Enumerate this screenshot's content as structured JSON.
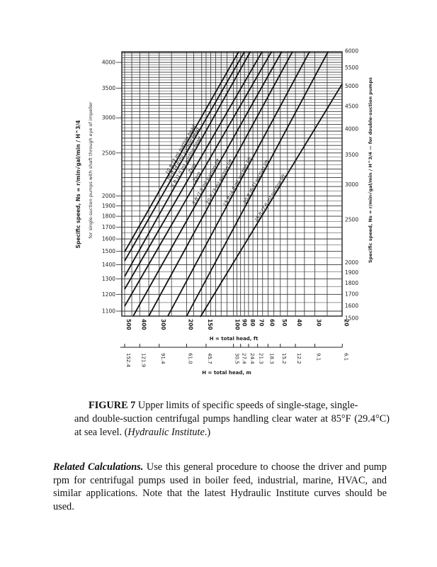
{
  "figure": {
    "number": "FIGURE 7",
    "caption_line1": "Upper limits of specific speeds of single-stage, single-",
    "caption_rest": "and double-suction centrifugal pumps handling clear water at 85°F (29.4°C) at sea level. (",
    "caption_source": "Hydraulic Institute",
    "caption_end": ".)"
  },
  "related": {
    "heading": "Related Calculations.",
    "text": "Use this general procedure to choose the driver and pump rpm for centrifugal pumps used in boiler feed, industrial, marine, HVAC, and similar applications. Note that the latest Hydraulic Institute curves should be used."
  },
  "chart_data": {
    "type": "line",
    "x_scale": "log",
    "y_scale": "log",
    "x_reversed": true,
    "grid": true,
    "xlabel": "H = total head, ft",
    "xlabel_secondary": "H = total head, m",
    "ylabel_left_1": "Specific speed, Ns = r/min√gal/min / H^3/4",
    "ylabel_left_2": "for single-suction pumps with shaft through eye of impeller",
    "ylabel_right": "Specific speed, Ns = r/min√gal/min / H^3/4 — for double-suction pumps",
    "xlim": [
      500,
      20
    ],
    "ylim_left": [
      1070,
      4230
    ],
    "ylim_right": [
      1500,
      6000
    ],
    "x_ticks": [
      500,
      400,
      300,
      200,
      150,
      100,
      90,
      80,
      70,
      60,
      50,
      40,
      30,
      20
    ],
    "x_ticks_m": [
      "152.4",
      "121.9",
      "91.4",
      "61.0",
      "45.7",
      "30.5",
      "27.4",
      "24.4",
      "21.3",
      "18.3",
      "15.2",
      "12.2",
      "9.1",
      "6.1"
    ],
    "y_ticks_left": [
      1100,
      1200,
      1300,
      1400,
      1500,
      1600,
      1700,
      1800,
      1900,
      2000,
      2500,
      3000,
      3500,
      4000
    ],
    "y_ticks_right": [
      1500,
      1600,
      1700,
      1800,
      1900,
      2000,
      2500,
      3000,
      3500,
      4000,
      4500,
      5000,
      5500,
      6000
    ],
    "series": [
      {
        "name": "10 ft (3 m) suction head",
        "points": [
          [
            500,
            1497
          ],
          [
            92.6,
            4227
          ]
        ]
      },
      {
        "name": "15 ft (4.6 m) suction head",
        "points": [
          [
            500,
            1428
          ],
          [
            85,
            4227
          ]
        ]
      },
      {
        "name": "5 ft (1.5 m) suction head",
        "points": [
          [
            500,
            1317
          ],
          [
            78,
            4227
          ]
        ]
      },
      {
        "name": "Zero",
        "points": [
          [
            500,
            1233
          ],
          [
            65.5,
            4227
          ]
        ]
      },
      {
        "name": "Zero",
        "points": [
          [
            500,
            1129
          ],
          [
            57,
            4227
          ]
        ]
      },
      {
        "name": "5 ft (1.5 m) suction lift",
        "points": [
          [
            441,
            1072
          ],
          [
            49,
            4227
          ]
        ]
      },
      {
        "name": "10 ft (3 m) suction lift",
        "points": [
          [
            350,
            1072
          ],
          [
            41.8,
            4227
          ]
        ]
      },
      {
        "name": "15 ft (4.6 m) suction lift",
        "points": [
          [
            264,
            1072
          ],
          [
            32.5,
            4227
          ]
        ]
      },
      {
        "name": "20 ft (6.1) suction lift",
        "points": [
          [
            200,
            1072
          ],
          [
            24.7,
            4227
          ]
        ]
      },
      {
        "name": "25 ft (7.6 m) suction lift",
        "points": [
          [
            163,
            1068
          ],
          [
            20,
            3580
          ]
        ]
      }
    ]
  }
}
